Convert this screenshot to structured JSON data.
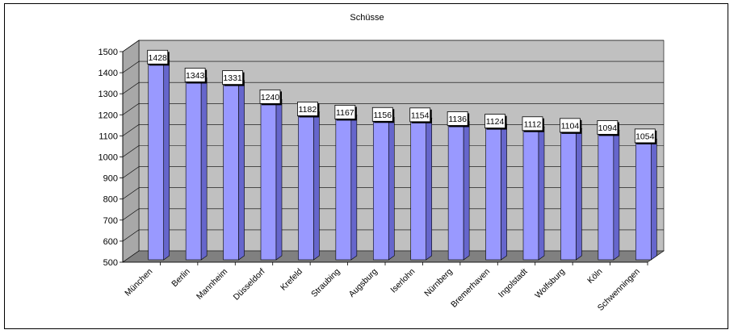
{
  "chart_data": {
    "type": "bar",
    "title": "Schüsse",
    "categories": [
      "München",
      "Berlin",
      "Mannheim",
      "Düsseldorf",
      "Krefeld",
      "Straubing",
      "Augsburg",
      "Iserlohn",
      "Nürnberg",
      "Bremerhaven",
      "Ingolstadt",
      "Wolfsburg",
      "Köln",
      "Schwenningen"
    ],
    "values": [
      1428,
      1343,
      1331,
      1240,
      1182,
      1167,
      1156,
      1154,
      1136,
      1124,
      1112,
      1104,
      1094,
      1054
    ],
    "ylim": [
      500,
      1500
    ],
    "yticks": [
      500,
      600,
      700,
      800,
      900,
      1000,
      1100,
      1200,
      1300,
      1400,
      1500
    ],
    "xlabel": "",
    "ylabel": "",
    "grid": true,
    "legend": "none",
    "style": "3d-column",
    "colors": {
      "bar_front": "#9999ff",
      "bar_side": "#6666cc",
      "bar_top": "#ccccff",
      "wall": "#c0c0c0",
      "floor": "#808080",
      "label_box": "#ffffff"
    }
  }
}
